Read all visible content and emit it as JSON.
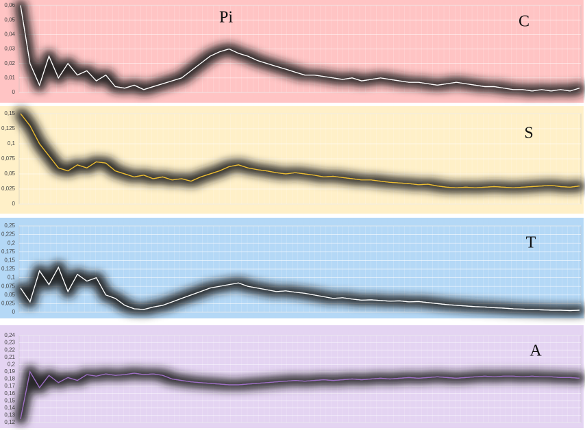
{
  "chart_data": [
    {
      "type": "line",
      "title": "C",
      "annotation": "Pi",
      "color": "#ffffff",
      "background": "#ffc4c4",
      "grid": true,
      "ylim": [
        0,
        0.06
      ],
      "yticks": [
        0,
        {
          "value": 0.01,
          "label": "0,01"
        },
        {
          "value": 0.02,
          "label": "0,02"
        },
        {
          "value": 0.03,
          "label": "0,03"
        },
        {
          "value": 0.04,
          "label": "0,04"
        },
        {
          "value": 0.05,
          "label": "0,05"
        },
        {
          "value": 0.06,
          "label": "0,06"
        }
      ],
      "values": [
        0.06,
        0.02,
        0.005,
        0.025,
        0.01,
        0.02,
        0.012,
        0.015,
        0.008,
        0.012,
        0.004,
        0.003,
        0.005,
        0.002,
        0.004,
        0.006,
        0.008,
        0.01,
        0.015,
        0.02,
        0.025,
        0.028,
        0.03,
        0.027,
        0.025,
        0.022,
        0.02,
        0.018,
        0.016,
        0.014,
        0.012,
        0.012,
        0.011,
        0.01,
        0.009,
        0.01,
        0.008,
        0.009,
        0.01,
        0.009,
        0.008,
        0.007,
        0.007,
        0.006,
        0.005,
        0.006,
        0.007,
        0.006,
        0.005,
        0.004,
        0.004,
        0.003,
        0.002,
        0.002,
        0.001,
        0.002,
        0.001,
        0.002,
        0.001,
        0.003
      ]
    },
    {
      "type": "line",
      "title": "S",
      "color": "#f0c030",
      "background": "#fff0c8",
      "grid": true,
      "ylim": [
        0,
        0.15
      ],
      "yticks": [
        0,
        {
          "value": 0.025,
          "label": "0,025"
        },
        {
          "value": 0.05,
          "label": "0,05"
        },
        {
          "value": 0.075,
          "label": "0,075"
        },
        {
          "value": 0.1,
          "label": "0,1"
        },
        {
          "value": 0.125,
          "label": "0,125"
        },
        {
          "value": 0.15,
          "label": "0,15"
        }
      ],
      "values": [
        0.15,
        0.13,
        0.1,
        0.08,
        0.06,
        0.055,
        0.065,
        0.06,
        0.07,
        0.068,
        0.055,
        0.05,
        0.045,
        0.048,
        0.042,
        0.045,
        0.04,
        0.042,
        0.038,
        0.045,
        0.05,
        0.055,
        0.062,
        0.065,
        0.06,
        0.057,
        0.055,
        0.052,
        0.05,
        0.052,
        0.05,
        0.048,
        0.045,
        0.046,
        0.044,
        0.042,
        0.04,
        0.04,
        0.038,
        0.036,
        0.035,
        0.034,
        0.032,
        0.033,
        0.03,
        0.028,
        0.027,
        0.028,
        0.027,
        0.028,
        0.029,
        0.028,
        0.027,
        0.028,
        0.029,
        0.03,
        0.031,
        0.029,
        0.028,
        0.03
      ]
    },
    {
      "type": "line",
      "title": "T",
      "color": "#ffffff",
      "background": "#b4d8f6",
      "grid": true,
      "ylim": [
        0,
        0.25
      ],
      "yticks": [
        0,
        {
          "value": 0.025,
          "label": "0,025"
        },
        {
          "value": 0.05,
          "label": "0,05"
        },
        {
          "value": 0.075,
          "label": "0,075"
        },
        {
          "value": 0.1,
          "label": "0,1"
        },
        {
          "value": 0.125,
          "label": "0,125"
        },
        {
          "value": 0.15,
          "label": "0,15"
        },
        {
          "value": 0.175,
          "label": "0,175"
        },
        {
          "value": 0.2,
          "label": "0,2"
        },
        {
          "value": 0.225,
          "label": "0,225"
        },
        {
          "value": 0.25,
          "label": "0,25"
        }
      ],
      "values": [
        0.07,
        0.03,
        0.12,
        0.08,
        0.13,
        0.06,
        0.11,
        0.09,
        0.1,
        0.05,
        0.04,
        0.02,
        0.01,
        0.008,
        0.015,
        0.02,
        0.03,
        0.04,
        0.05,
        0.06,
        0.07,
        0.075,
        0.08,
        0.085,
        0.075,
        0.07,
        0.065,
        0.06,
        0.062,
        0.058,
        0.055,
        0.05,
        0.045,
        0.04,
        0.042,
        0.038,
        0.035,
        0.036,
        0.034,
        0.032,
        0.033,
        0.03,
        0.031,
        0.028,
        0.025,
        0.022,
        0.02,
        0.018,
        0.016,
        0.015,
        0.013,
        0.012,
        0.01,
        0.009,
        0.008,
        0.007,
        0.006,
        0.006,
        0.005,
        0.006
      ]
    },
    {
      "type": "line",
      "title": "A",
      "color": "#a070c8",
      "background": "#e4d4f2",
      "grid": true,
      "ylim": [
        0.12,
        0.24
      ],
      "yticks": [
        {
          "value": 0.12,
          "label": "0,12"
        },
        {
          "value": 0.13,
          "label": "0,13"
        },
        {
          "value": 0.14,
          "label": "0,14"
        },
        {
          "value": 0.15,
          "label": "0,15"
        },
        {
          "value": 0.16,
          "label": "0,16"
        },
        {
          "value": 0.17,
          "label": "0,17"
        },
        {
          "value": 0.18,
          "label": "0,18"
        },
        {
          "value": 0.19,
          "label": "0,19"
        },
        {
          "value": 0.2,
          "label": "0,2"
        },
        {
          "value": 0.21,
          "label": "0,21"
        },
        {
          "value": 0.22,
          "label": "0,22"
        },
        {
          "value": 0.23,
          "label": "0,23"
        },
        {
          "value": 0.24,
          "label": "0,24"
        }
      ],
      "values": [
        0.125,
        0.19,
        0.168,
        0.185,
        0.175,
        0.182,
        0.178,
        0.186,
        0.184,
        0.187,
        0.185,
        0.186,
        0.188,
        0.186,
        0.187,
        0.185,
        0.18,
        0.178,
        0.176,
        0.175,
        0.174,
        0.173,
        0.172,
        0.172,
        0.173,
        0.174,
        0.175,
        0.176,
        0.177,
        0.178,
        0.177,
        0.178,
        0.179,
        0.178,
        0.179,
        0.18,
        0.179,
        0.18,
        0.181,
        0.18,
        0.181,
        0.182,
        0.181,
        0.182,
        0.183,
        0.182,
        0.181,
        0.182,
        0.183,
        0.184,
        0.183,
        0.184,
        0.184,
        0.183,
        0.184,
        0.183,
        0.183,
        0.182,
        0.182,
        0.181
      ]
    }
  ]
}
